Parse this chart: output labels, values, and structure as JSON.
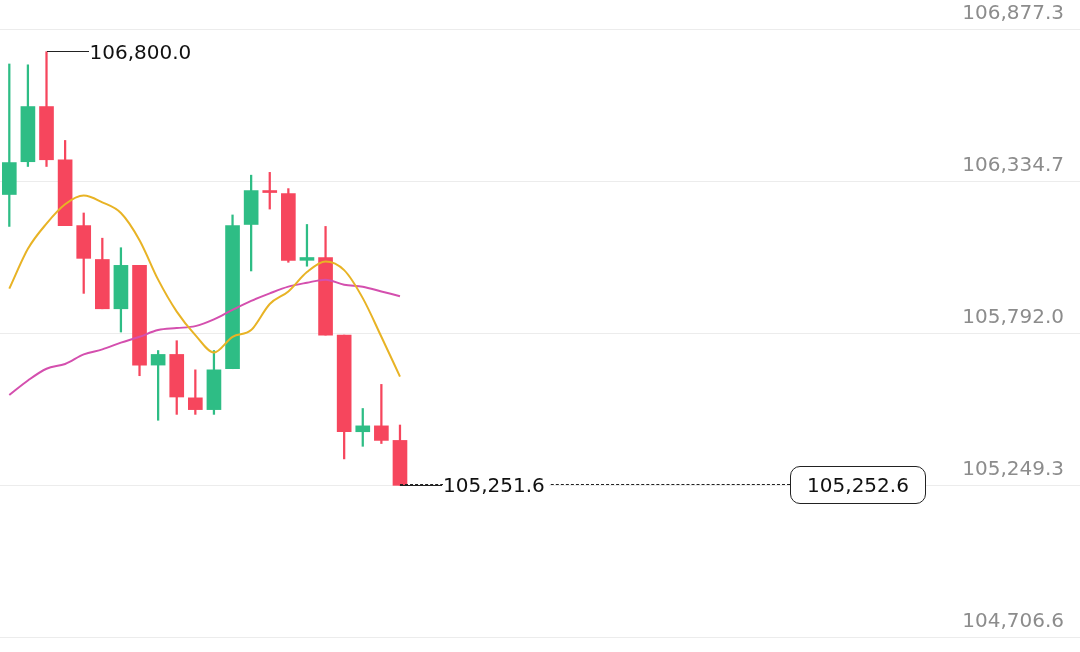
{
  "chart_data": {
    "type": "candlestick",
    "categories": [
      null,
      null,
      null,
      null,
      null,
      null,
      null,
      null,
      null,
      null,
      null,
      null,
      null,
      null,
      null,
      null,
      null,
      null,
      null,
      null,
      null,
      null,
      null,
      null,
      null,
      null,
      null,
      null,
      null,
      null,
      null,
      null,
      null,
      null,
      null,
      null,
      null,
      null,
      null,
      null,
      null,
      null,
      null,
      null,
      null,
      null,
      null,
      null,
      null,
      null,
      null,
      null,
      null,
      null,
      null,
      null,
      null,
      null
    ],
    "ohlc": [
      [
        106290,
        106756,
        106176,
        106404
      ],
      [
        106407,
        106753,
        106390,
        106604
      ],
      [
        106604,
        106800,
        106390,
        106414
      ],
      [
        106414,
        106483,
        106179,
        106179
      ],
      [
        106179,
        106224,
        105937,
        106062
      ],
      [
        106058,
        106134,
        105882,
        105882
      ],
      [
        105882,
        106100,
        105799,
        106037
      ],
      [
        106037,
        106037,
        105643,
        105681
      ],
      [
        105681,
        105733,
        105484,
        105719
      ],
      [
        105719,
        105768,
        105505,
        105567
      ],
      [
        105564,
        105664,
        105505,
        105522
      ],
      [
        105522,
        105733,
        105505,
        105664
      ],
      [
        105668,
        106217,
        105668,
        106179
      ],
      [
        106183,
        106359,
        106017,
        106304
      ],
      [
        106304,
        106369,
        106238,
        106297
      ],
      [
        106293,
        106311,
        106048,
        106055
      ],
      [
        106055,
        106183,
        106034,
        106065
      ],
      [
        106065,
        106176,
        105788,
        105788
      ],
      [
        105788,
        105788,
        105346,
        105443
      ],
      [
        105443,
        105526,
        105391,
        105464
      ],
      [
        105464,
        105612,
        105401,
        105412
      ],
      [
        105412,
        105467,
        105251.6,
        105251.6
      ],
      null,
      null,
      null,
      null,
      null,
      null,
      null,
      null,
      null,
      null,
      null,
      null,
      null,
      null,
      null,
      null,
      null,
      null,
      null,
      null,
      null,
      null,
      null,
      null,
      null,
      null,
      null,
      null,
      null,
      null,
      null,
      null,
      null,
      null,
      null,
      null
    ],
    "colors": [
      "#2ebd85",
      "#2ebd85",
      "#f6465d",
      "#f6465d",
      "#f6465d",
      "#f6465d",
      "#2ebd85",
      "#f6465d",
      "#2ebd85",
      "#f6465d",
      "#f6465d",
      "#2ebd85",
      "#2ebd85",
      "#2ebd85",
      "#f6465d",
      "#f6465d",
      "#2ebd85",
      "#f6465d",
      "#f6465d",
      "#2ebd85",
      "#f6465d",
      "#f6465d",
      null,
      null,
      null,
      null,
      null,
      null,
      null,
      null,
      null,
      null,
      null,
      null,
      null,
      null,
      null,
      null,
      null,
      null,
      null,
      null,
      null,
      null,
      null,
      null,
      null,
      null,
      null,
      null,
      null,
      null,
      null,
      null,
      null,
      null,
      null,
      null
    ],
    "series": [
      {
        "type": "line",
        "color": "#e8b325",
        "values": [
          105954,
          106096,
          106186,
          106255,
          106286,
          106262,
          106224,
          106127,
          105986,
          105872,
          105788,
          105726,
          105782,
          105806,
          105899,
          105944,
          106013,
          106051,
          106020,
          105920,
          105782,
          105640,
          null,
          null,
          null,
          null,
          null,
          null,
          null,
          null,
          null,
          null,
          null,
          null,
          null,
          null,
          null,
          null,
          null,
          null,
          null,
          null,
          null,
          null,
          null,
          null,
          null,
          null,
          null,
          null,
          null,
          null,
          null,
          null,
          null,
          null,
          null,
          null
        ]
      },
      {
        "type": "line",
        "color": "#d44fae",
        "values": [
          105574,
          105626,
          105668,
          105685,
          105719,
          105737,
          105761,
          105782,
          105806,
          105813,
          105820,
          105844,
          105878,
          105910,
          105937,
          105961,
          105975,
          105986,
          105968,
          105961,
          105944,
          105927,
          null,
          null,
          null,
          null,
          null,
          null,
          null,
          null,
          null,
          null,
          null,
          null,
          null,
          null,
          null,
          null,
          null,
          null,
          null,
          null,
          null,
          null,
          null,
          null,
          null,
          null,
          null,
          null,
          null,
          null,
          null,
          null,
          null,
          null,
          null,
          null
        ]
      }
    ],
    "ylim": [
      104706.6,
      106877.3
    ],
    "yticks": [
      {
        "value": 104706.6,
        "label": "104,706.6"
      },
      {
        "value": 105249.3,
        "label": "105,249.3"
      },
      {
        "value": 105792.0,
        "label": "105,792.0"
      },
      {
        "value": 106334.7,
        "label": "106,334.7"
      },
      {
        "value": 106877.3,
        "label": "106,877.3"
      }
    ],
    "grid": "y",
    "ref_lines": [
      {
        "axis": "y",
        "value": 105252.6,
        "label": "105,252.6",
        "line_style": "dashed",
        "color": "#222222"
      }
    ],
    "annotations": [
      "106,800.0",
      {
        "text": "105,251.6",
        "y": 105251.6
      }
    ]
  }
}
